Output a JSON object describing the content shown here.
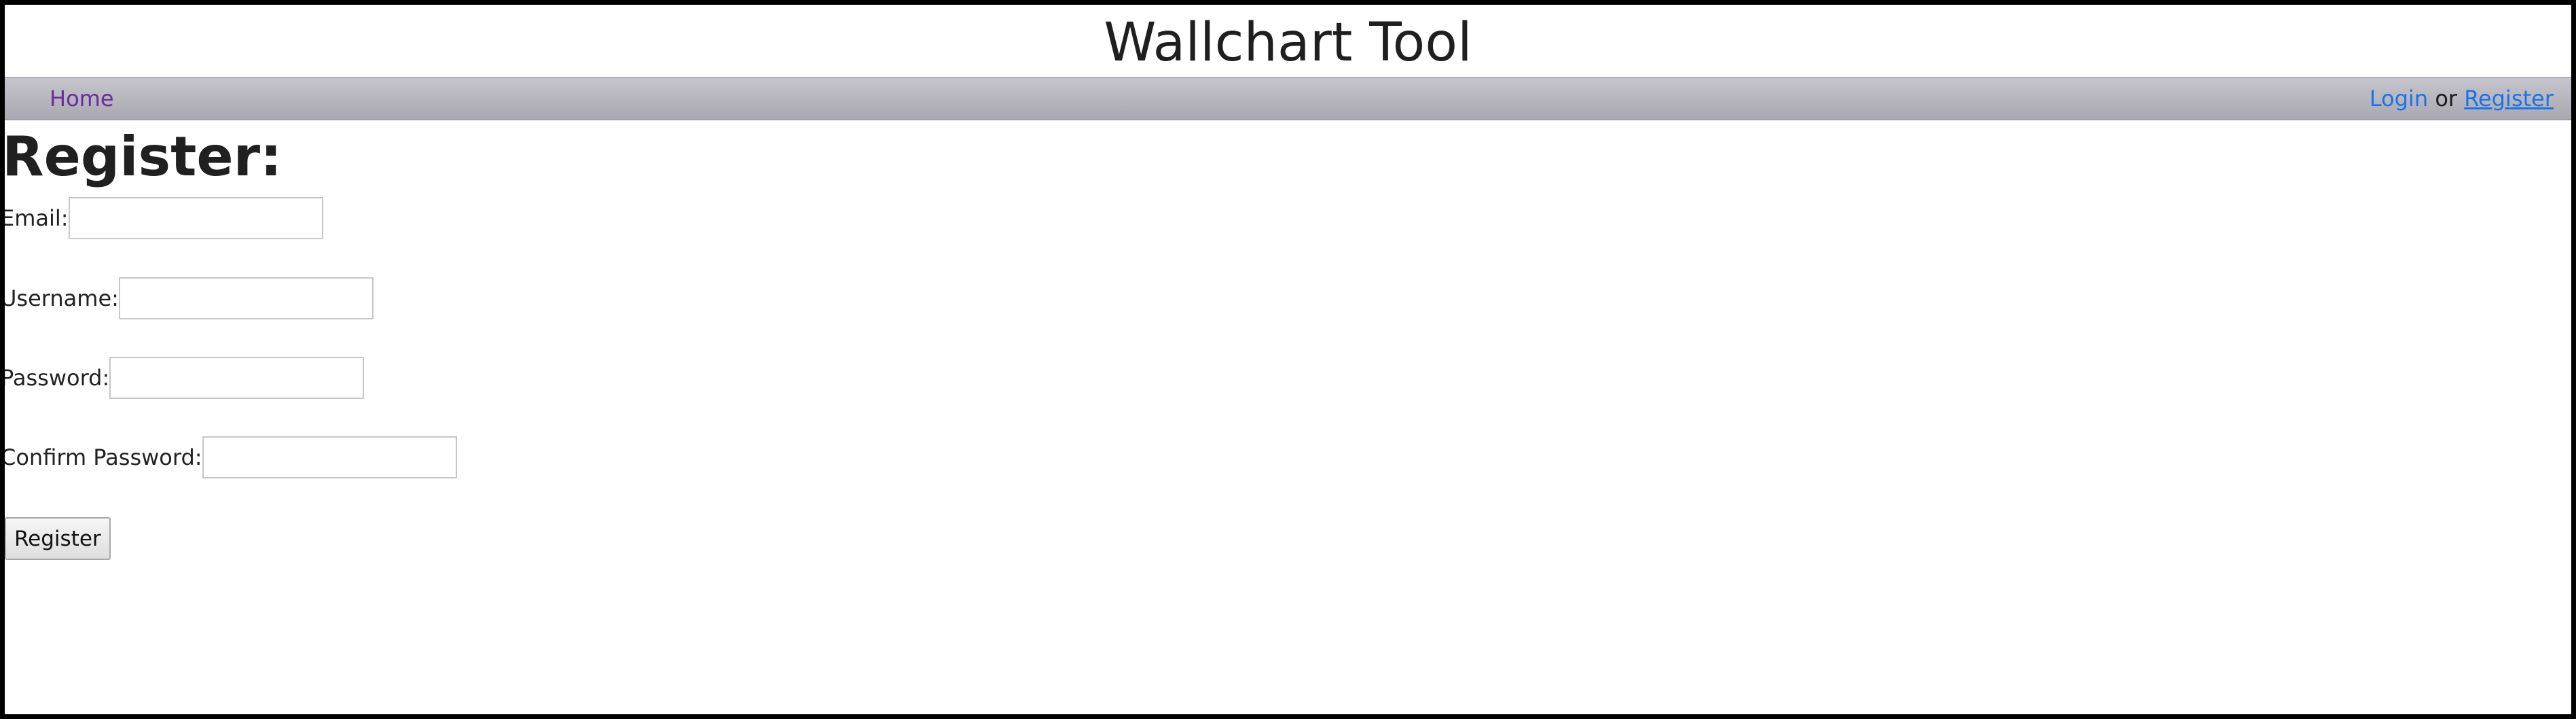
{
  "header": {
    "title": "Wallchart Tool"
  },
  "navbar": {
    "home_label": "Home",
    "login_label": "Login",
    "separator": "or",
    "register_label": "Register"
  },
  "page": {
    "heading": "Register:"
  },
  "form": {
    "email_label": "Email:",
    "email_value": "",
    "username_label": "Username:",
    "username_value": "",
    "password_label": "Password:",
    "password_value": "",
    "confirm_password_label": "Confirm Password:",
    "confirm_password_value": "",
    "submit_label": "Register"
  },
  "colors": {
    "nav_link_visited": "#6a2c9e",
    "nav_link": "#1a73e8",
    "navbar_background": "#b6b5bd"
  }
}
